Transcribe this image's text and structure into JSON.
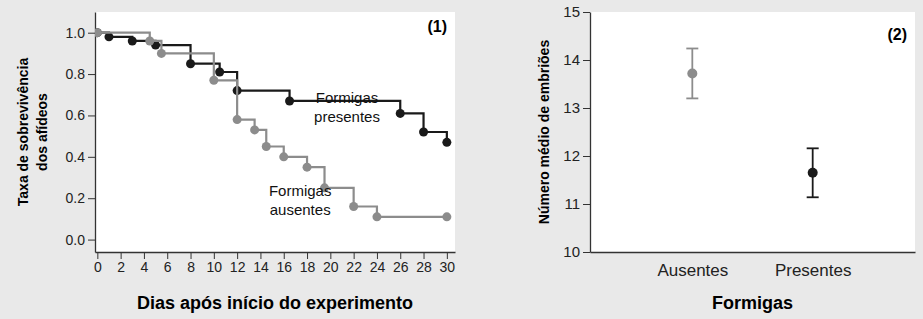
{
  "chart_data": [
    {
      "type": "line",
      "title": "(1)",
      "x_label": "Dias após início do experimento",
      "y_label": "Taxa de sobrevivência\ndos afídeos",
      "line_style": "step",
      "marker": "circle",
      "grid": false,
      "xlim": [
        -0.2,
        30.7
      ],
      "xticks": [
        0,
        2,
        4,
        6,
        8,
        10,
        12,
        14,
        16,
        18,
        20,
        22,
        24,
        26,
        28,
        30
      ],
      "ylim": [
        -0.06,
        1.1
      ],
      "yticks": [
        {
          "value": 0,
          "label": "0.0"
        },
        {
          "value": 0.2,
          "label": "0.2"
        },
        {
          "value": 0.4,
          "label": "0.4"
        },
        {
          "value": 0.6,
          "label": "0.6"
        },
        {
          "value": 0.8,
          "label": "0.8"
        },
        {
          "value": 1,
          "label": "1.0"
        }
      ],
      "series": [
        {
          "name": "Formigas\npresentes",
          "color": "#1a1a1a",
          "x": [
            0,
            1,
            3,
            5,
            8,
            10.5,
            12,
            16.5,
            26,
            28,
            30
          ],
          "values": [
            1.0,
            0.98,
            0.96,
            0.94,
            0.85,
            0.81,
            0.72,
            0.67,
            0.61,
            0.52,
            0.47
          ]
        },
        {
          "name": "Formigas\nausentes",
          "color": "#8c8c8c",
          "x": [
            0,
            4.5,
            5.5,
            10,
            12,
            13.5,
            14.5,
            16,
            18,
            19.5,
            22,
            24,
            30
          ],
          "values": [
            1.0,
            0.96,
            0.9,
            0.77,
            0.58,
            0.53,
            0.45,
            0.4,
            0.35,
            0.25,
            0.16,
            0.11,
            0.11
          ]
        }
      ]
    },
    {
      "type": "point",
      "title": "(2)",
      "x_label": "Formigas",
      "y_label": "Número médio de embriões",
      "marker": "circle",
      "grid": false,
      "categories": [
        "Ausentes",
        "Presentes"
      ],
      "values": [
        13.72,
        11.65
      ],
      "errors": [
        0.52,
        0.51
      ],
      "colors": [
        "#8c8c8c",
        "#1a1a1a"
      ],
      "ylim": [
        10,
        15
      ],
      "yticks": [
        10,
        11,
        12,
        13,
        14,
        15
      ]
    }
  ]
}
